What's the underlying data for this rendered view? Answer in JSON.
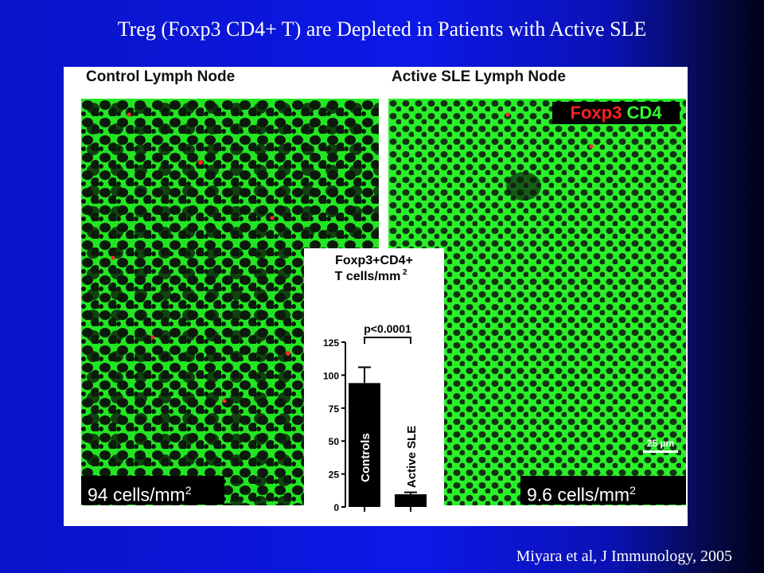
{
  "slide": {
    "title": "Treg (Foxp3 CD4+ T) are Depleted in Patients with Active SLE",
    "citation": "Miyara et al, J Immunology, 2005"
  },
  "figure": {
    "left_panel": {
      "label": "Control Lymph Node",
      "count_value": "94 cells/mm",
      "count_sup": "2"
    },
    "right_panel": {
      "label": "Active SLE Lymph Node",
      "count_value": "9.6 cells/mm",
      "count_sup": "2"
    },
    "legend": {
      "foxp3": "Foxp3",
      "cd4": "CD4",
      "foxp3_color": "#ff2020",
      "cd4_color": "#30ff30"
    },
    "scale_bar": "25 µm"
  },
  "chart_data": {
    "type": "bar",
    "title_line1": "Foxp3+CD4+",
    "title_line2": "T cells/mm",
    "title_sup": "2",
    "categories": [
      "Controls",
      "Active SLE"
    ],
    "values": [
      94,
      9.6
    ],
    "errors": [
      12,
      1.5
    ],
    "ylim": [
      0,
      125
    ],
    "yticks": [
      0,
      25,
      50,
      75,
      100,
      125
    ],
    "annotation": "p<0.0001",
    "bar_color": "#000000"
  }
}
